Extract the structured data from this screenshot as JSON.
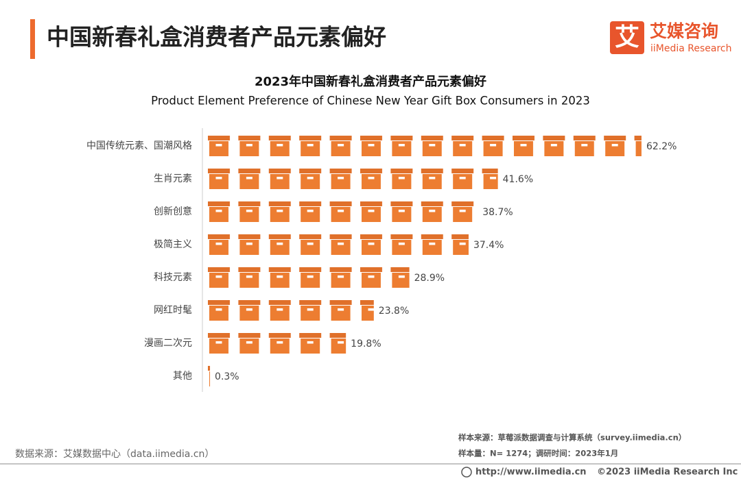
{
  "header": {
    "title": "中国新春礼盒消费者产品元素偏好",
    "logo_mark": "艾",
    "logo_name": "艾媒咨询",
    "logo_sub": "iiMedia Research"
  },
  "chart_data": {
    "type": "pictogram-bar",
    "title": "2023年中国新春礼盒消费者产品元素偏好",
    "subtitle": "Product Element Preference of Chinese New Year Gift Box Consumers in 2023",
    "categories": [
      "中国传统元素、国潮风格",
      "生肖元素",
      "创新创意",
      "极简主义",
      "科技元素",
      "网红时髦",
      "漫画二次元",
      "其他"
    ],
    "values": [
      62.2,
      41.6,
      38.7,
      37.4,
      28.9,
      23.8,
      19.8,
      0.3
    ],
    "value_labels": [
      "62.2%",
      "41.6%",
      "38.7%",
      "37.4%",
      "28.9%",
      "23.8%",
      "19.8%",
      "0.3%"
    ],
    "color": "#ed7d31"
  },
  "footer": {
    "data_source": "数据来源：艾媒数据中心（data.iimedia.cn）",
    "sample_source": "样本来源：草莓派数据调查与计算系统（survey.iimedia.cn）",
    "sample_size": "样本量：N= 1274；调研时间：2023年1月",
    "url": "http://www.iimedia.cn",
    "copyright": "©2023  iiMedia Research  Inc"
  }
}
